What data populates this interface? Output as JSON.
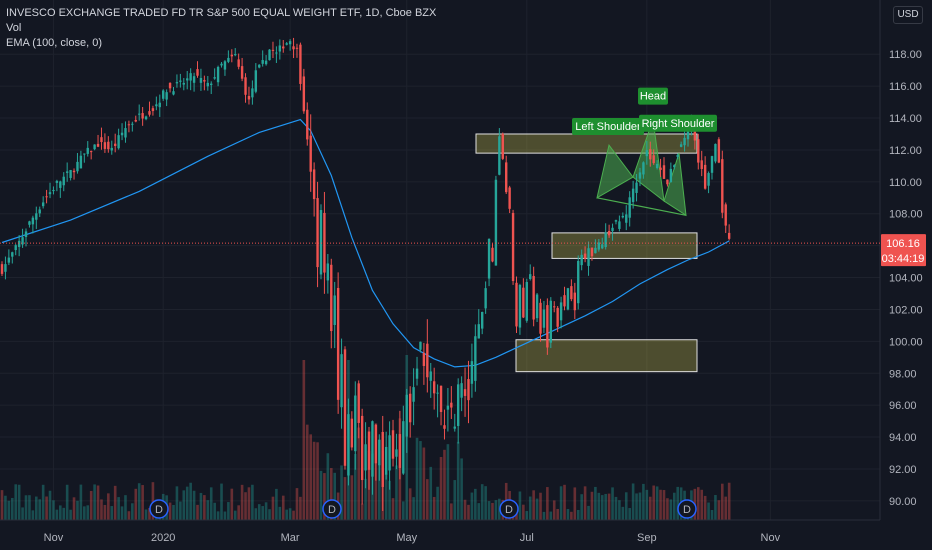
{
  "legend": {
    "symbol": "INVESCO EXCHANGE TRADED FD TR S&P 500 EQUAL WEIGHT ETF, 1D, Cboe BZX",
    "volume": "Vol",
    "ema": "EMA (100, close, 0)"
  },
  "currency_button": "USD",
  "price_tag": {
    "value": "106.16",
    "countdown": "03:44:19"
  },
  "colors": {
    "background": "#131722",
    "up": "#26a69a",
    "down": "#ef5350",
    "ema": "#2196f3",
    "zone_fill": "#c9c24a",
    "pattern": "#4caf50",
    "label_bg": "#1e8f2f"
  },
  "chart_data": {
    "type": "candlestick",
    "x_ticks": [
      "Nov",
      "2020",
      "Mar",
      "May",
      "Jul",
      "Sep",
      "Nov"
    ],
    "y_ticks": [
      90,
      92,
      94,
      96,
      98,
      100,
      102,
      104,
      106,
      108,
      110,
      112,
      114,
      116,
      118
    ],
    "ylim": [
      88.8,
      121.4
    ],
    "last_price": 106.16,
    "annotations": {
      "pattern_labels": [
        "Left Shoulder",
        "Head",
        "Right Shoulder"
      ],
      "dividend_marker": "D",
      "dividend_count": 4,
      "zones": [
        {
          "name": "upper-resistance",
          "low": 111.8,
          "high": 113.0
        },
        {
          "name": "middle-support",
          "low": 105.2,
          "high": 106.8
        },
        {
          "name": "lower-support",
          "low": 98.1,
          "high": 100.1
        }
      ]
    },
    "price_path": [
      [
        0,
        104.5
      ],
      [
        4,
        105.8
      ],
      [
        8,
        107.4
      ],
      [
        12,
        108.8
      ],
      [
        16,
        109.9
      ],
      [
        20,
        110.6
      ],
      [
        24,
        111.7
      ],
      [
        28,
        112.4
      ],
      [
        32,
        112.0
      ],
      [
        36,
        113.4
      ],
      [
        40,
        114.1
      ],
      [
        44,
        114.6
      ],
      [
        48,
        115.8
      ],
      [
        52,
        116.1
      ],
      [
        56,
        116.7
      ],
      [
        60,
        116.0
      ],
      [
        64,
        117.3
      ],
      [
        68,
        117.9
      ],
      [
        70,
        116.4
      ],
      [
        72,
        115.0
      ],
      [
        74,
        116.8
      ],
      [
        76,
        117.4
      ],
      [
        78,
        118.3
      ],
      [
        80,
        118.0
      ],
      [
        82,
        118.6
      ],
      [
        84,
        118.9
      ],
      [
        86,
        118.2
      ],
      [
        88,
        114.6
      ],
      [
        89,
        112.9
      ],
      [
        90,
        110.4
      ],
      [
        91,
        108.3
      ],
      [
        92,
        105.1
      ],
      [
        93,
        107.8
      ],
      [
        94,
        103.9
      ],
      [
        95,
        104.8
      ],
      [
        96,
        100.8
      ],
      [
        97,
        103.2
      ],
      [
        98,
        96.2
      ],
      [
        99,
        99.7
      ],
      [
        100,
        92.4
      ],
      [
        101,
        95.6
      ],
      [
        102,
        92.9
      ],
      [
        103,
        97.0
      ],
      [
        104,
        94.4
      ],
      [
        105,
        91.2
      ],
      [
        106,
        93.8
      ],
      [
        107,
        91.9
      ],
      [
        108,
        94.4
      ],
      [
        109,
        92.1
      ],
      [
        110,
        93.6
      ],
      [
        111,
        91.5
      ],
      [
        112,
        92.8
      ],
      [
        113,
        94.2
      ],
      [
        114,
        92.9
      ],
      [
        115,
        93.4
      ],
      [
        116,
        91.9
      ],
      [
        117,
        94.8
      ],
      [
        118,
        96.2
      ],
      [
        119,
        95.4
      ],
      [
        120,
        96.7
      ],
      [
        121,
        98.9
      ],
      [
        122,
        99.7
      ],
      [
        123,
        99.0
      ],
      [
        124,
        98.2
      ],
      [
        125,
        97.6
      ],
      [
        126,
        96.1
      ],
      [
        127,
        97.2
      ],
      [
        128,
        95.6
      ],
      [
        129,
        94.9
      ],
      [
        130,
        96.6
      ],
      [
        131,
        95.4
      ],
      [
        132,
        95.2
      ],
      [
        133,
        97.1
      ],
      [
        134,
        96.9
      ],
      [
        136,
        96.5
      ],
      [
        138,
        99.8
      ],
      [
        140,
        101.7
      ],
      [
        141,
        103.6
      ],
      [
        142,
        106.2
      ],
      [
        143,
        104.9
      ],
      [
        144,
        110.2
      ],
      [
        145,
        112.9
      ],
      [
        146,
        111.4
      ],
      [
        147,
        109.6
      ],
      [
        148,
        108.1
      ],
      [
        149,
        103.9
      ],
      [
        150,
        101.2
      ],
      [
        151,
        103.3
      ],
      [
        152,
        101.4
      ],
      [
        153,
        103.9
      ],
      [
        154,
        104.4
      ],
      [
        155,
        101.3
      ],
      [
        156,
        102.7
      ],
      [
        157,
        100.6
      ],
      [
        158,
        101.9
      ],
      [
        159,
        99.7
      ],
      [
        160,
        102.6
      ],
      [
        161,
        102.1
      ],
      [
        162,
        101.1
      ],
      [
        163,
        102.7
      ],
      [
        164,
        102.1
      ],
      [
        165,
        103.4
      ],
      [
        166,
        102.9
      ],
      [
        167,
        102.2
      ],
      [
        168,
        104.8
      ],
      [
        169,
        105.5
      ],
      [
        170,
        105.1
      ],
      [
        171,
        106.1
      ],
      [
        172,
        105.6
      ],
      [
        174,
        106.0
      ],
      [
        176,
        106.6
      ],
      [
        178,
        107.2
      ],
      [
        180,
        107.5
      ],
      [
        182,
        108.1
      ],
      [
        184,
        109.6
      ],
      [
        186,
        110.8
      ],
      [
        188,
        111.9
      ],
      [
        190,
        111.1
      ],
      [
        192,
        110.9
      ],
      [
        194,
        109.9
      ],
      [
        196,
        111.2
      ],
      [
        198,
        112.4
      ],
      [
        199,
        112.8
      ],
      [
        200,
        113.5
      ],
      [
        201,
        113.9
      ],
      [
        202,
        112.6
      ],
      [
        203,
        111.2
      ],
      [
        204,
        110.9
      ],
      [
        205,
        109.4
      ],
      [
        206,
        110.6
      ],
      [
        207,
        111.6
      ],
      [
        208,
        112.4
      ],
      [
        209,
        111.1
      ],
      [
        210,
        108.3
      ],
      [
        211,
        107.0
      ],
      [
        212,
        106.16
      ]
    ],
    "ema_path": [
      [
        0,
        106.2
      ],
      [
        20,
        107.6
      ],
      [
        40,
        109.4
      ],
      [
        60,
        111.6
      ],
      [
        75,
        113.1
      ],
      [
        87,
        113.9
      ],
      [
        90,
        113.2
      ],
      [
        96,
        110.4
      ],
      [
        102,
        106.5
      ],
      [
        108,
        103.2
      ],
      [
        114,
        101.1
      ],
      [
        120,
        99.6
      ],
      [
        126,
        98.9
      ],
      [
        132,
        98.4
      ],
      [
        138,
        98.5
      ],
      [
        144,
        99.0
      ],
      [
        150,
        99.6
      ],
      [
        156,
        100.2
      ],
      [
        162,
        100.8
      ],
      [
        170,
        101.6
      ],
      [
        178,
        102.5
      ],
      [
        186,
        103.6
      ],
      [
        194,
        104.5
      ],
      [
        200,
        105.1
      ],
      [
        206,
        105.6
      ],
      [
        212,
        106.3
      ]
    ]
  }
}
